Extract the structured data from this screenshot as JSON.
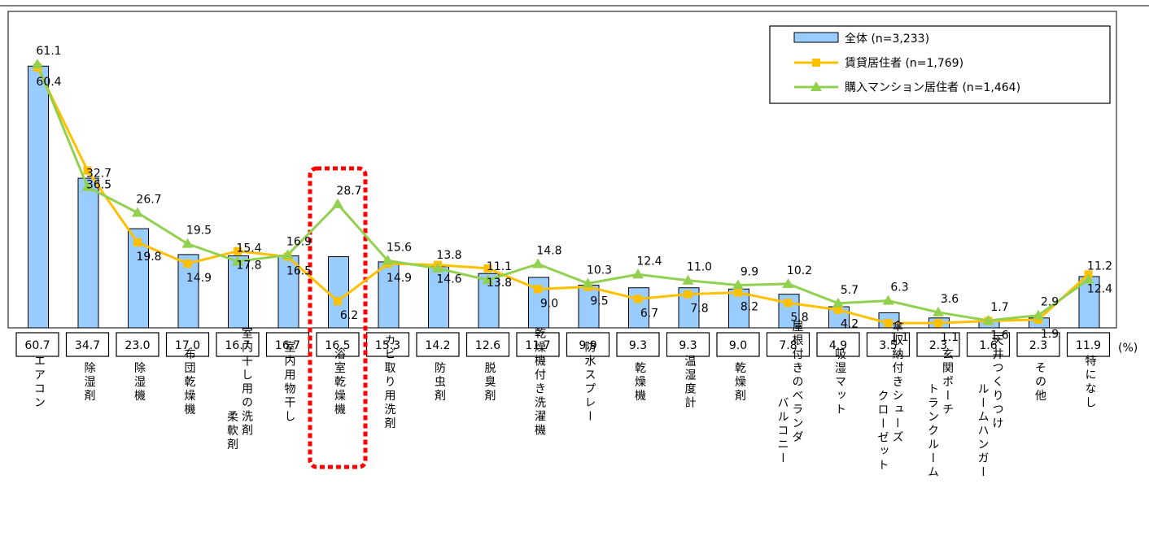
{
  "chart_data": {
    "type": "bar",
    "unit_label": "(%)",
    "categories": [
      [
        "エアコン"
      ],
      [
        "除湿剤"
      ],
      [
        "除湿機"
      ],
      [
        "布団乾燥機"
      ],
      [
        "室内干し用の洗剤",
        "柔軟剤"
      ],
      [
        "室内用物干し"
      ],
      [
        "浴室乾燥機"
      ],
      [
        "カビ取り用洗剤"
      ],
      [
        "防虫剤"
      ],
      [
        "脱臭剤"
      ],
      [
        "乾燥機付き洗濯機"
      ],
      [
        "防水スプレー"
      ],
      [
        "乾燥機"
      ],
      [
        "温湿度計"
      ],
      [
        "乾燥剤"
      ],
      [
        "屋根付きのベランダ",
        "バルコニー"
      ],
      [
        "吸湿マット"
      ],
      [
        "傘収納付きシューズ",
        "クローゼット"
      ],
      [
        "玄関ポーチ",
        "トランクルーム"
      ],
      [
        "天井つくりつけ",
        "ルームハンガー"
      ],
      [
        "その他"
      ],
      [
        "特になし"
      ]
    ],
    "series": [
      {
        "name": "全体",
        "n": "(n=3,233)",
        "kind": "bar",
        "color": "#99ccff",
        "values": [
          60.7,
          34.7,
          23.0,
          17.0,
          16.7,
          16.7,
          16.5,
          15.3,
          14.2,
          12.6,
          11.7,
          9.9,
          9.3,
          9.3,
          9.0,
          7.8,
          4.9,
          3.5,
          2.3,
          1.6,
          2.3,
          11.9
        ],
        "labels": [
          "60.7",
          "34.7",
          "23.0",
          "17.0",
          "16.7",
          "16.7",
          "16.5",
          "15.3",
          "14.2",
          "12.6",
          "11.7",
          "9.9",
          "9.3",
          "9.3",
          "9.0",
          "7.8",
          "4.9",
          "3.5",
          "2.3",
          "1.6",
          "2.3",
          "11.9"
        ]
      },
      {
        "name": "賃貸居住者",
        "n": "(n=1,769)",
        "kind": "line",
        "color": "#ffc000",
        "marker": "square",
        "values": [
          60.4,
          36.5,
          19.8,
          14.9,
          17.8,
          16.5,
          6.2,
          14.9,
          14.6,
          13.8,
          9.0,
          9.5,
          6.7,
          7.8,
          8.2,
          5.8,
          4.2,
          1.1,
          1.1,
          1.6,
          1.9,
          12.4
        ],
        "labels": [
          "60.4",
          "36.5",
          "19.8",
          "14.9",
          "17.8",
          "16.5",
          "6.2",
          "14.9",
          "14.6",
          "13.8",
          "9.0",
          "9.5",
          "6.7",
          "7.8",
          "8.2",
          "5.8",
          "4.2",
          "1.1",
          "1.1",
          "1.6",
          "1.9",
          "12.4"
        ]
      },
      {
        "name": "購入マンション居住者",
        "n": "(n=1,464)",
        "kind": "line",
        "color": "#92d050",
        "marker": "triangle",
        "values": [
          61.1,
          32.7,
          26.7,
          19.5,
          15.4,
          16.9,
          28.7,
          15.6,
          13.8,
          11.1,
          14.8,
          10.3,
          12.4,
          11.0,
          9.9,
          10.2,
          5.7,
          6.3,
          3.6,
          1.7,
          2.9,
          11.2
        ],
        "labels": [
          "61.1",
          "32.7",
          "26.7",
          "19.5",
          "15.4",
          "16.9",
          "28.7",
          "15.6",
          "13.8",
          "11.1",
          "14.8",
          "10.3",
          "12.4",
          "11.0",
          "9.9",
          "10.2",
          "5.7",
          "6.3",
          "3.6",
          "1.7",
          "2.9",
          "11.2"
        ]
      }
    ],
    "highlight_category_index": 6,
    "highlight_color": "#ff0000",
    "ylim": [
      0,
      65
    ]
  }
}
